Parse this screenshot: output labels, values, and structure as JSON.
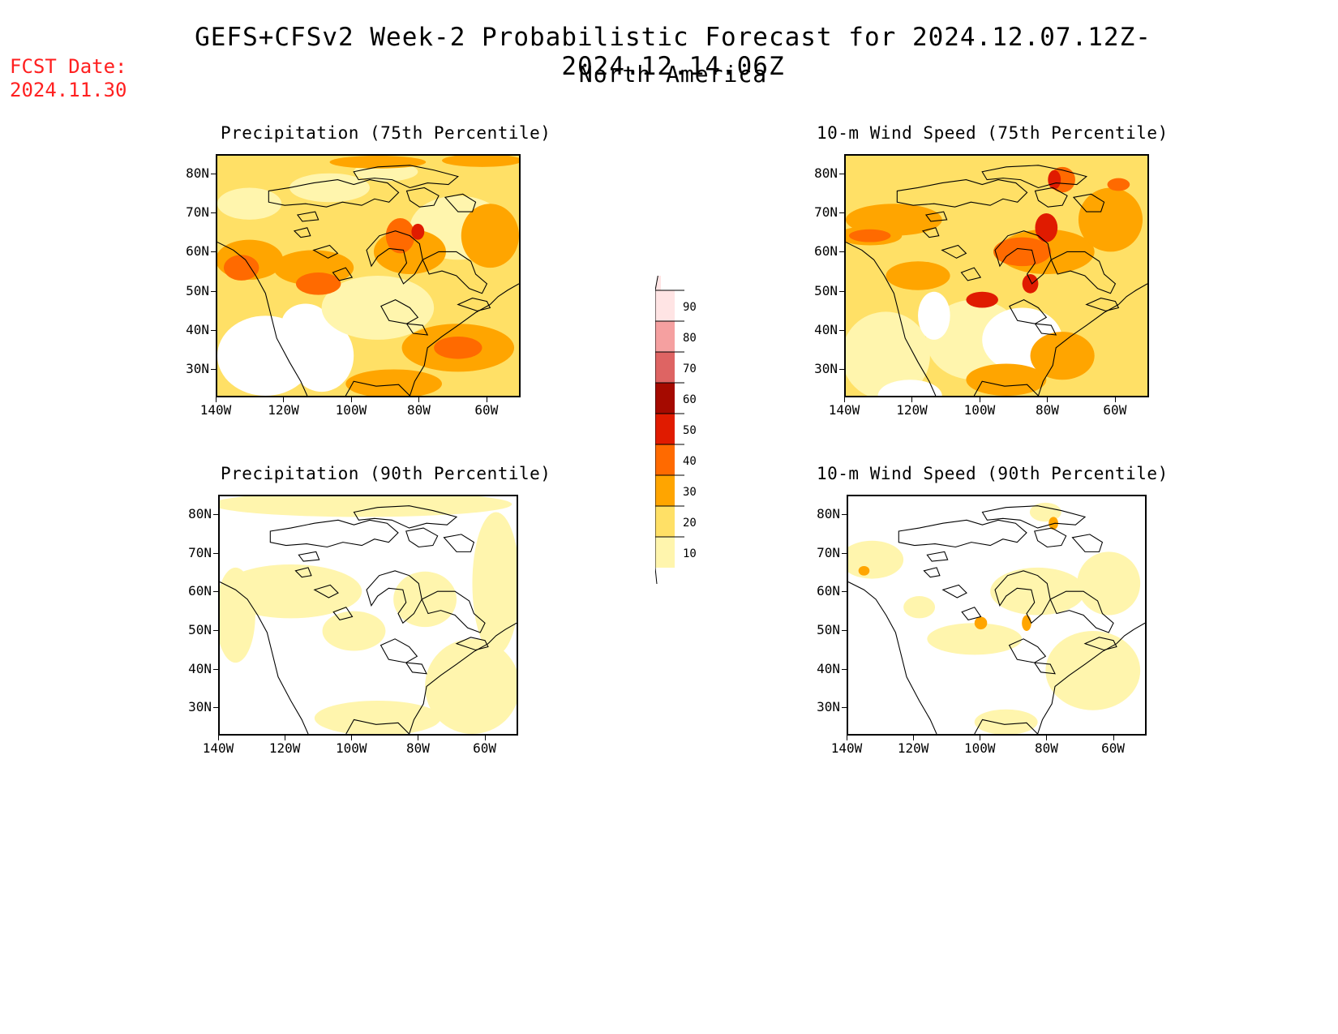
{
  "header": {
    "title": "GEFS+CFSv2 Week-2 Probabilistic Forecast for 2024.12.07.12Z-2024.12.14.06Z",
    "region": "North America",
    "fcst_date_label": "FCST Date:",
    "fcst_date_value": "2024.11.30"
  },
  "axes": {
    "lat_labels": [
      "80N",
      "70N",
      "60N",
      "50N",
      "40N",
      "30N"
    ],
    "lon_labels": [
      "140W",
      "120W",
      "100W",
      "80W",
      "60W"
    ]
  },
  "panels": [
    {
      "title": "Precipitation (75th Percentile)",
      "field": "precip_75"
    },
    {
      "title": "10-m Wind Speed (75th Percentile)",
      "field": "wind_75"
    },
    {
      "title": "Precipitation (90th Percentile)",
      "field": "precip_90"
    },
    {
      "title": "10-m Wind Speed (90th Percentile)",
      "field": "wind_90"
    }
  ],
  "colorbar": {
    "levels": [
      "90",
      "80",
      "70",
      "60",
      "50",
      "40",
      "30",
      "20",
      "10"
    ],
    "colors": {
      "10-20": "#fff5ad",
      "20-30": "#ffe066",
      "30-40": "#ffa500",
      "40-50": "#ff6a00",
      "50-60": "#e01b00",
      "60-70": "#a50a00",
      "70-80": "#de6463",
      "80-90": "#f5a0a0",
      "90-100": "#ffe4e4"
    }
  }
}
